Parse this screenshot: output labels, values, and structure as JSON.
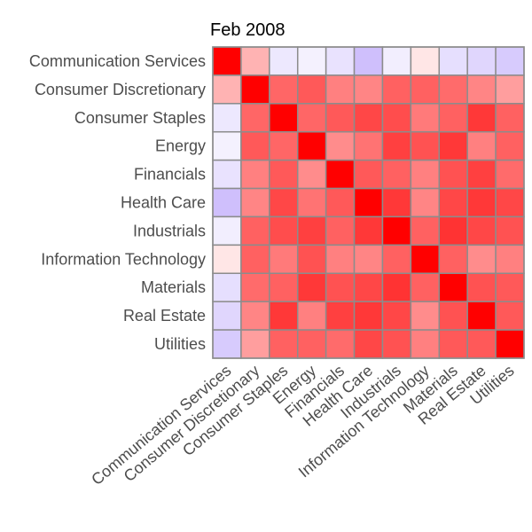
{
  "chart_data": {
    "type": "heatmap",
    "title": "Feb 2008",
    "categories": [
      "Communication Services",
      "Consumer Discretionary",
      "Consumer Staples",
      "Energy",
      "Financials",
      "Health Care",
      "Industrials",
      "Information Technology",
      "Materials",
      "Real Estate",
      "Utilities"
    ],
    "values": [
      [
        1.0,
        0.3,
        -0.2,
        -0.12,
        -0.25,
        -0.55,
        -0.15,
        0.1,
        -0.28,
        -0.35,
        -0.45
      ],
      [
        0.3,
        1.0,
        0.6,
        0.65,
        0.5,
        0.48,
        0.62,
        0.62,
        0.58,
        0.48,
        0.38
      ],
      [
        -0.2,
        0.6,
        1.0,
        0.6,
        0.65,
        0.72,
        0.7,
        0.52,
        0.62,
        0.78,
        0.62
      ],
      [
        -0.12,
        0.65,
        0.6,
        1.0,
        0.45,
        0.55,
        0.75,
        0.68,
        0.78,
        0.5,
        0.62
      ],
      [
        -0.25,
        0.5,
        0.65,
        0.45,
        1.0,
        0.65,
        0.62,
        0.5,
        0.68,
        0.75,
        0.58
      ],
      [
        -0.55,
        0.48,
        0.72,
        0.55,
        0.65,
        1.0,
        0.78,
        0.48,
        0.72,
        0.78,
        0.72
      ],
      [
        -0.15,
        0.62,
        0.7,
        0.75,
        0.62,
        0.78,
        1.0,
        0.62,
        0.8,
        0.72,
        0.68
      ],
      [
        0.1,
        0.62,
        0.52,
        0.68,
        0.5,
        0.48,
        0.62,
        1.0,
        0.62,
        0.45,
        0.5
      ],
      [
        -0.28,
        0.58,
        0.62,
        0.78,
        0.68,
        0.72,
        0.8,
        0.62,
        1.0,
        0.68,
        0.65
      ],
      [
        -0.35,
        0.48,
        0.78,
        0.5,
        0.75,
        0.78,
        0.72,
        0.45,
        0.68,
        1.0,
        0.65
      ],
      [
        -0.45,
        0.38,
        0.62,
        0.62,
        0.58,
        0.72,
        0.68,
        0.5,
        0.65,
        0.65,
        1.0
      ]
    ],
    "color_scale": {
      "negative": "#a78bfa",
      "neutral": "#ffffff",
      "positive": "#ff0000"
    },
    "cell_border_color": "#8c8c8c",
    "legend": "none",
    "grid": false
  }
}
